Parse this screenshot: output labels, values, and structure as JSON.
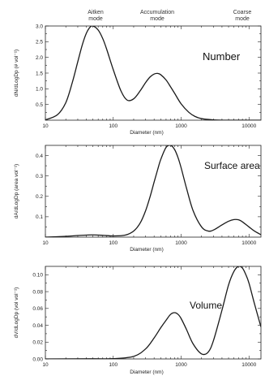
{
  "modes": [
    {
      "line1": "Aitken",
      "line2": "mode"
    },
    {
      "line1": "Accumulation",
      "line2": "mode"
    },
    {
      "line1": "Coarse",
      "line2": "mode"
    }
  ],
  "chart_data": [
    {
      "type": "line",
      "title": "Number",
      "xlabel": "Diameter (nm)",
      "ylabel": "dN/dLogDp (# vol⁻¹)",
      "xscale": "log",
      "xlim": [
        10,
        15000
      ],
      "ylim": [
        0,
        3.0
      ],
      "xticks": [
        10,
        100,
        1000,
        10000
      ],
      "xtick_labels": [
        "10",
        "100",
        "1000",
        "10000"
      ],
      "yticks": [
        0.5,
        1.0,
        1.5,
        2.0,
        2.5,
        3.0
      ],
      "ytick_labels": [
        "0.5",
        "1.0",
        "1.5",
        "2.0",
        "2.5",
        "3.0"
      ],
      "grid": false,
      "series": [
        {
          "x": [
            10,
            15,
            20,
            25,
            30,
            35,
            40,
            45,
            50,
            60,
            70,
            80,
            100,
            130,
            160,
            200,
            250,
            300,
            350,
            400,
            450,
            500,
            600,
            700,
            800,
            1000,
            1300,
            1600,
            2000,
            3000,
            5000,
            10000,
            15000
          ],
          "y": [
            0.01,
            0.17,
            0.56,
            1.21,
            1.86,
            2.4,
            2.76,
            2.95,
            3.0,
            2.87,
            2.6,
            2.26,
            1.61,
            0.93,
            0.64,
            0.68,
            0.94,
            1.2,
            1.38,
            1.47,
            1.49,
            1.45,
            1.28,
            1.06,
            0.86,
            0.52,
            0.25,
            0.12,
            0.05,
            0.01,
            0.0,
            0.0,
            0.0
          ]
        }
      ]
    },
    {
      "type": "line",
      "title": "Surface area",
      "xlabel": "Diameter (nm)",
      "ylabel": "dA/dLogDp (area vol⁻¹)",
      "xscale": "log",
      "xlim": [
        10,
        15000
      ],
      "ylim": [
        0,
        0.45
      ],
      "xticks": [
        10,
        100,
        1000,
        10000
      ],
      "xtick_labels": [
        "10",
        "100",
        "1000",
        "10000"
      ],
      "yticks": [
        0.1,
        0.2,
        0.3,
        0.4
      ],
      "ytick_labels": [
        "0.1",
        "0.2",
        "0.3",
        "0.4"
      ],
      "grid": false,
      "series": [
        {
          "x": [
            10,
            20,
            30,
            40,
            50,
            70,
            100,
            150,
            200,
            250,
            300,
            350,
            400,
            450,
            500,
            600,
            700,
            800,
            900,
            1000,
            1200,
            1500,
            2000,
            2500,
            3000,
            4000,
            5000,
            6000,
            7000,
            8000,
            10000,
            12000,
            15000
          ],
          "y": [
            0.0,
            0.004,
            0.008,
            0.01,
            0.011,
            0.009,
            0.006,
            0.01,
            0.03,
            0.07,
            0.13,
            0.2,
            0.27,
            0.33,
            0.38,
            0.44,
            0.45,
            0.43,
            0.39,
            0.34,
            0.24,
            0.13,
            0.05,
            0.03,
            0.035,
            0.06,
            0.078,
            0.086,
            0.085,
            0.075,
            0.05,
            0.03,
            0.012
          ]
        }
      ]
    },
    {
      "type": "line",
      "title": "Volume",
      "xlabel": "Diameter (nm)",
      "ylabel": "dV/dLogDp (vol vol⁻¹)",
      "xscale": "log",
      "xlim": [
        10,
        15000
      ],
      "ylim": [
        0,
        0.11
      ],
      "xticks": [
        10,
        100,
        1000,
        10000
      ],
      "xtick_labels": [
        "10",
        "100",
        "1000",
        "10000"
      ],
      "yticks": [
        0.0,
        0.02,
        0.04,
        0.06,
        0.08,
        0.1
      ],
      "ytick_labels": [
        "0.00",
        "0.02",
        "0.04",
        "0.06",
        "0.08",
        "0.10"
      ],
      "grid": false,
      "series": [
        {
          "x": [
            10,
            50,
            100,
            200,
            300,
            400,
            500,
            600,
            700,
            800,
            900,
            1000,
            1200,
            1500,
            2000,
            2500,
            3000,
            4000,
            5000,
            6000,
            7000,
            8000,
            9000,
            10000,
            12000,
            15000
          ],
          "y": [
            0.0,
            0.0002,
            0.0003,
            0.003,
            0.012,
            0.025,
            0.037,
            0.046,
            0.053,
            0.055,
            0.053,
            0.048,
            0.035,
            0.018,
            0.006,
            0.008,
            0.022,
            0.058,
            0.088,
            0.104,
            0.11,
            0.108,
            0.1,
            0.09,
            0.066,
            0.038
          ]
        }
      ]
    }
  ]
}
